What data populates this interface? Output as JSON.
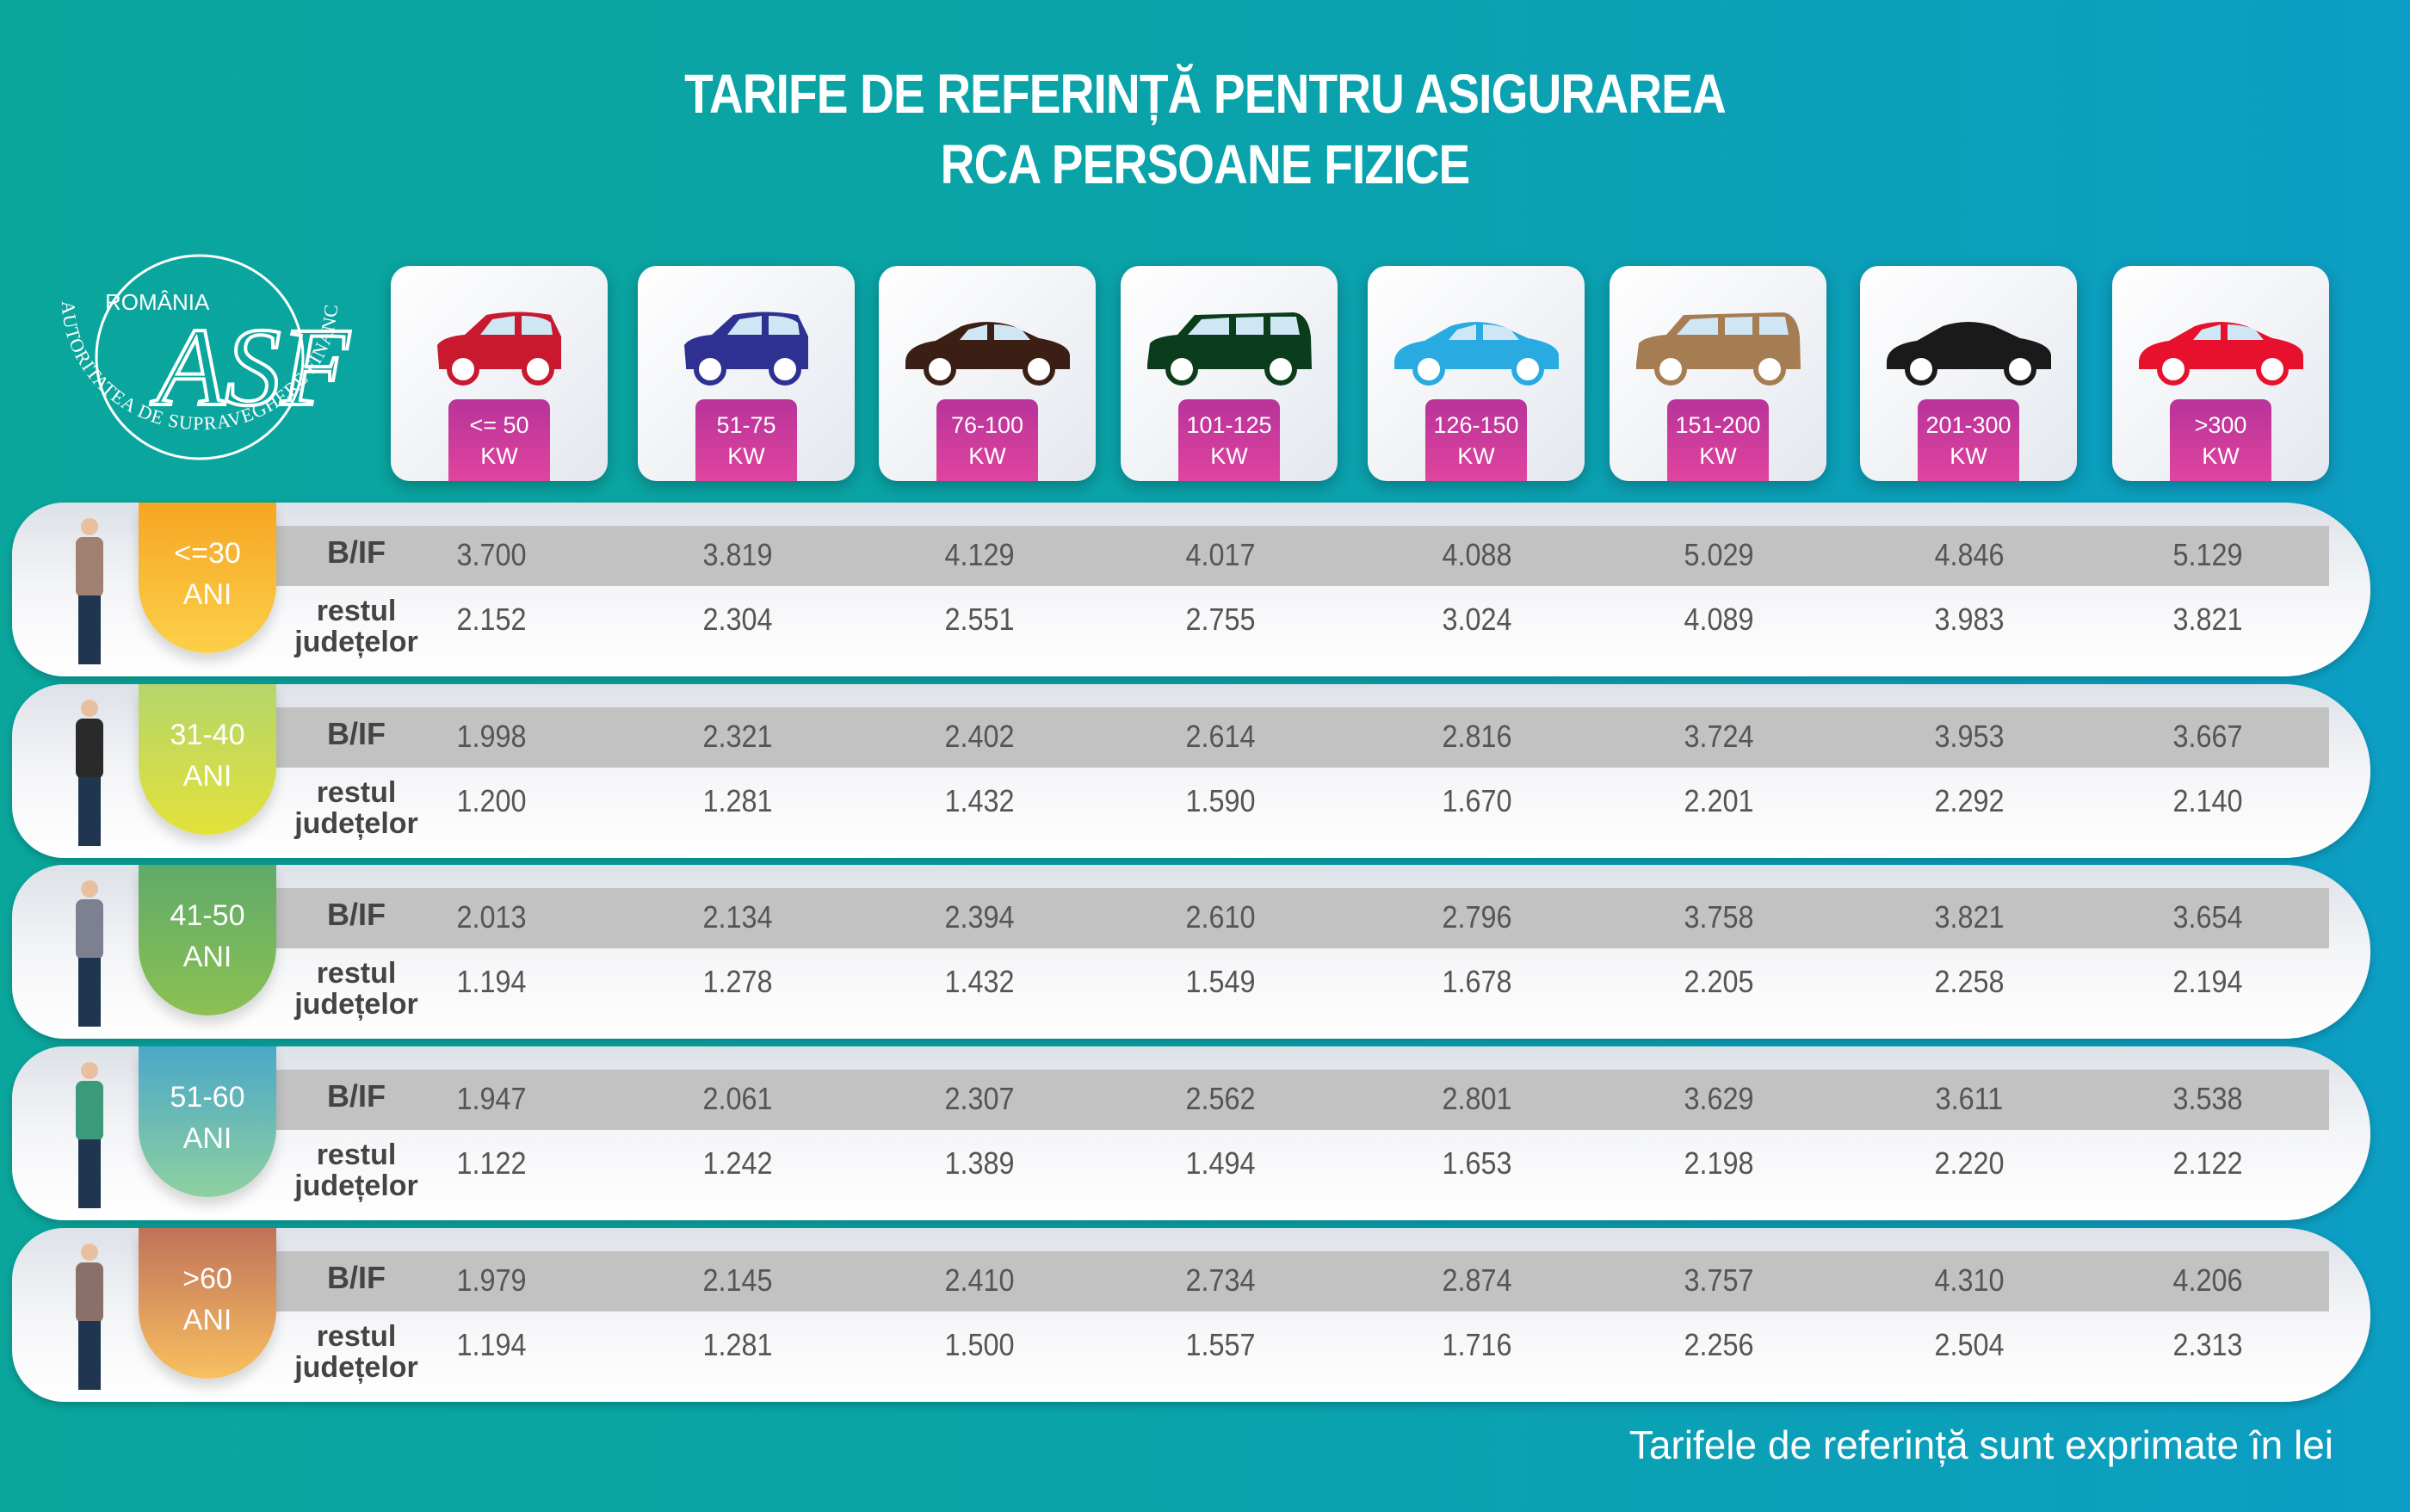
{
  "title": {
    "line1": "TARIFE DE REFERINȚĂ PENTRU ASIGURAREA",
    "line2": "RCA PERSOANE FIZICE"
  },
  "logo": {
    "country": "ROMÂNIA",
    "monogram": "ASF",
    "arc_text": "AUTORITATEA DE SUPRAVEGHERE FINANCIARĂ"
  },
  "power_classes": [
    {
      "line1": "<= 50",
      "line2": "KW",
      "car_color": "#c8192e",
      "car_icon": "hatchback-car-icon"
    },
    {
      "line1": "51-75",
      "line2": "KW",
      "car_color": "#2e3192",
      "car_icon": "hatchback-car-icon"
    },
    {
      "line1": "76-100",
      "line2": "KW",
      "car_color": "#3b1f14",
      "car_icon": "sedan-car-icon"
    },
    {
      "line1": "101-125",
      "line2": "KW",
      "car_color": "#0b3d1c",
      "car_icon": "minivan-car-icon"
    },
    {
      "line1": "126-150",
      "line2": "KW",
      "car_color": "#29abe2",
      "car_icon": "sedan-car-icon"
    },
    {
      "line1": "151-200",
      "line2": "KW",
      "car_color": "#a67c52",
      "car_icon": "suv-car-icon"
    },
    {
      "line1": "201-300",
      "line2": "KW",
      "car_color": "#1a1a1a",
      "car_icon": "convertible-car-icon"
    },
    {
      "line1": ">300",
      "line2": "KW",
      "car_color": "#e8112d",
      "car_icon": "sports-car-icon"
    }
  ],
  "region_labels": {
    "bif": "B/IF",
    "rest_line1": "restul",
    "rest_line2": "județelor"
  },
  "age_groups": [
    {
      "line1": "<=30",
      "line2": "ANI",
      "colors": [
        "#f5a623",
        "#fcd04a"
      ],
      "person_color": "#a08070",
      "bif": [
        "3.700",
        "3.819",
        "4.129",
        "4.017",
        "4.088",
        "5.029",
        "4.846",
        "5.129"
      ],
      "rest": [
        "2.152",
        "2.304",
        "2.551",
        "2.755",
        "3.024",
        "4.089",
        "3.983",
        "3.821"
      ]
    },
    {
      "line1": "31-40",
      "line2": "ANI",
      "colors": [
        "#b5d56a",
        "#e3e23a"
      ],
      "person_color": "#2a2a2a",
      "bif": [
        "1.998",
        "2.321",
        "2.402",
        "2.614",
        "2.816",
        "3.724",
        "3.953",
        "3.667"
      ],
      "rest": [
        "1.200",
        "1.281",
        "1.432",
        "1.590",
        "1.670",
        "2.201",
        "2.292",
        "2.140"
      ]
    },
    {
      "line1": "41-50",
      "line2": "ANI",
      "colors": [
        "#5faa6a",
        "#8cc152"
      ],
      "person_color": "#7c8090",
      "bif": [
        "2.013",
        "2.134",
        "2.394",
        "2.610",
        "2.796",
        "3.758",
        "3.821",
        "3.654"
      ],
      "rest": [
        "1.194",
        "1.278",
        "1.432",
        "1.549",
        "1.678",
        "2.205",
        "2.258",
        "2.194"
      ]
    },
    {
      "line1": "51-60",
      "line2": "ANI",
      "colors": [
        "#4aa8c8",
        "#8fd0a0"
      ],
      "person_color": "#3a9a7a",
      "bif": [
        "1.947",
        "2.061",
        "2.307",
        "2.562",
        "2.801",
        "3.629",
        "3.611",
        "3.538"
      ],
      "rest": [
        "1.122",
        "1.242",
        "1.389",
        "1.494",
        "1.653",
        "2.198",
        "2.220",
        "2.122"
      ]
    },
    {
      "line1": ">60",
      "line2": "ANI",
      "colors": [
        "#c0725a",
        "#f8c060"
      ],
      "person_color": "#8a7068",
      "bif": [
        "1.979",
        "2.145",
        "2.410",
        "2.734",
        "2.874",
        "3.757",
        "4.310",
        "4.206"
      ],
      "rest": [
        "1.194",
        "1.281",
        "1.500",
        "1.557",
        "1.716",
        "2.256",
        "2.504",
        "2.313"
      ]
    }
  ],
  "footer": "Tarifele de referință sunt exprimate în lei"
}
